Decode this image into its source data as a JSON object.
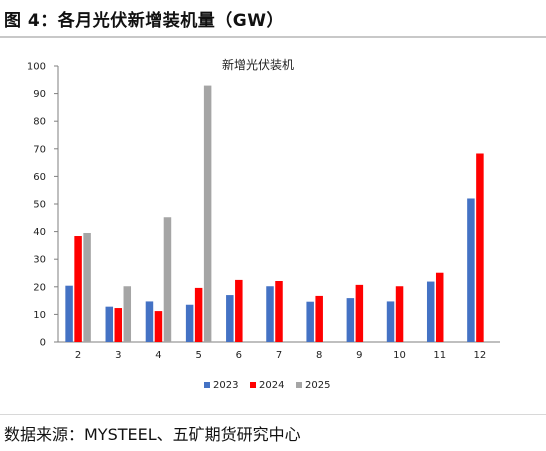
{
  "figure_title": "图 4：各月光伏新增装机量（GW）",
  "source": "数据来源：MYSTEEL、五矿期货研究中心",
  "colors": {
    "2023": "#4472C4",
    "2024": "#FF0000",
    "2025": "#A5A5A5"
  },
  "chart_data": {
    "type": "bar",
    "title": "新增光伏装机",
    "xlabel": "",
    "ylabel": "",
    "ylim": [
      0,
      100
    ],
    "yticks": [
      0,
      10,
      20,
      30,
      40,
      50,
      60,
      70,
      80,
      90,
      100
    ],
    "categories": [
      "2",
      "3",
      "4",
      "5",
      "6",
      "7",
      "8",
      "9",
      "10",
      "11",
      "12"
    ],
    "grid": false,
    "legend_position": "bottom",
    "series": [
      {
        "name": "2023",
        "color": "#4472C4",
        "values": [
          20.4,
          12.8,
          14.7,
          13.5,
          17.0,
          20.2,
          14.6,
          15.9,
          14.7,
          21.9,
          52.0
        ]
      },
      {
        "name": "2024",
        "color": "#FF0000",
        "values": [
          38.4,
          12.3,
          11.2,
          19.6,
          22.5,
          22.1,
          16.7,
          20.7,
          20.2,
          25.1,
          68.3
        ]
      },
      {
        "name": "2025",
        "color": "#A5A5A5",
        "values": [
          39.5,
          20.2,
          45.2,
          92.9,
          null,
          null,
          null,
          null,
          null,
          null,
          null
        ]
      }
    ]
  }
}
